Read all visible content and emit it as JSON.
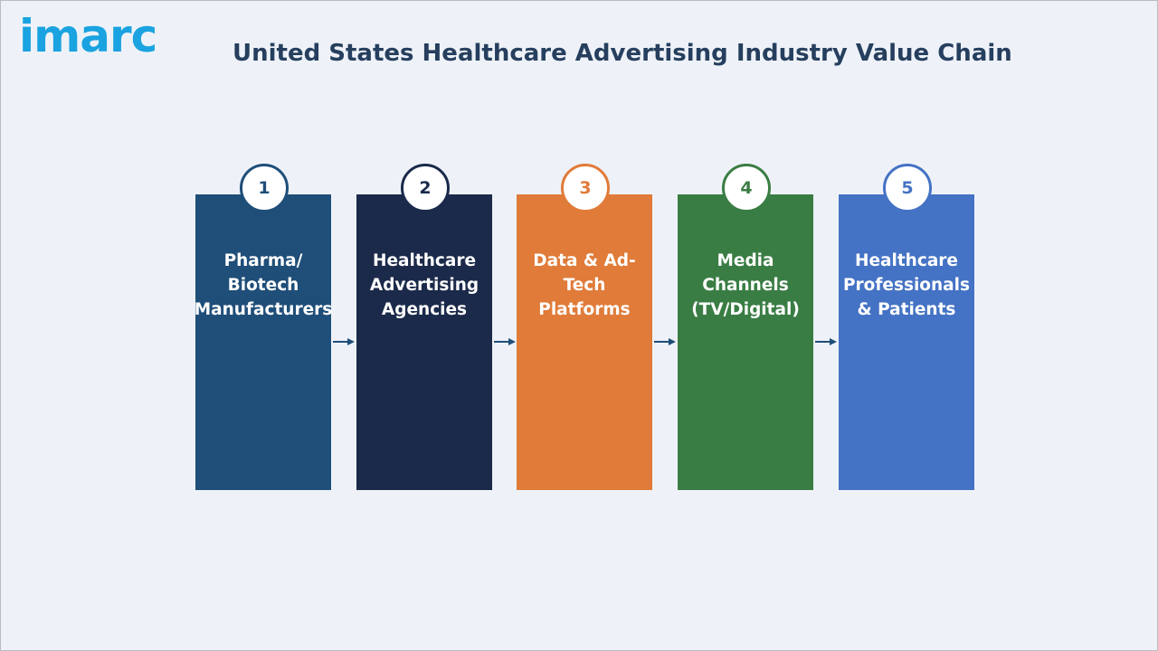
{
  "header": {
    "logo_text": "imarc",
    "title": "United States Healthcare Advertising Industry Value Chain"
  },
  "stages": [
    {
      "number": "1",
      "label": "Pharma/\nBiotech\nManufacturers",
      "color": "#1f4e79"
    },
    {
      "number": "2",
      "label": "Healthcare\nAdvertising\nAgencies",
      "color": "#1b2a4a"
    },
    {
      "number": "3",
      "label": "Data & Ad-\nTech\nPlatforms",
      "color": "#e07b39"
    },
    {
      "number": "4",
      "label": "Media\nChannels\n(TV/Digital)",
      "color": "#3a7d44"
    },
    {
      "number": "5",
      "label": "Healthcare\nProfessionals\n& Patients",
      "color": "#4472c4"
    }
  ],
  "colors": {
    "arrow": "#1f4e79",
    "title": "#263f5e",
    "logo": "#1aa3e0"
  }
}
